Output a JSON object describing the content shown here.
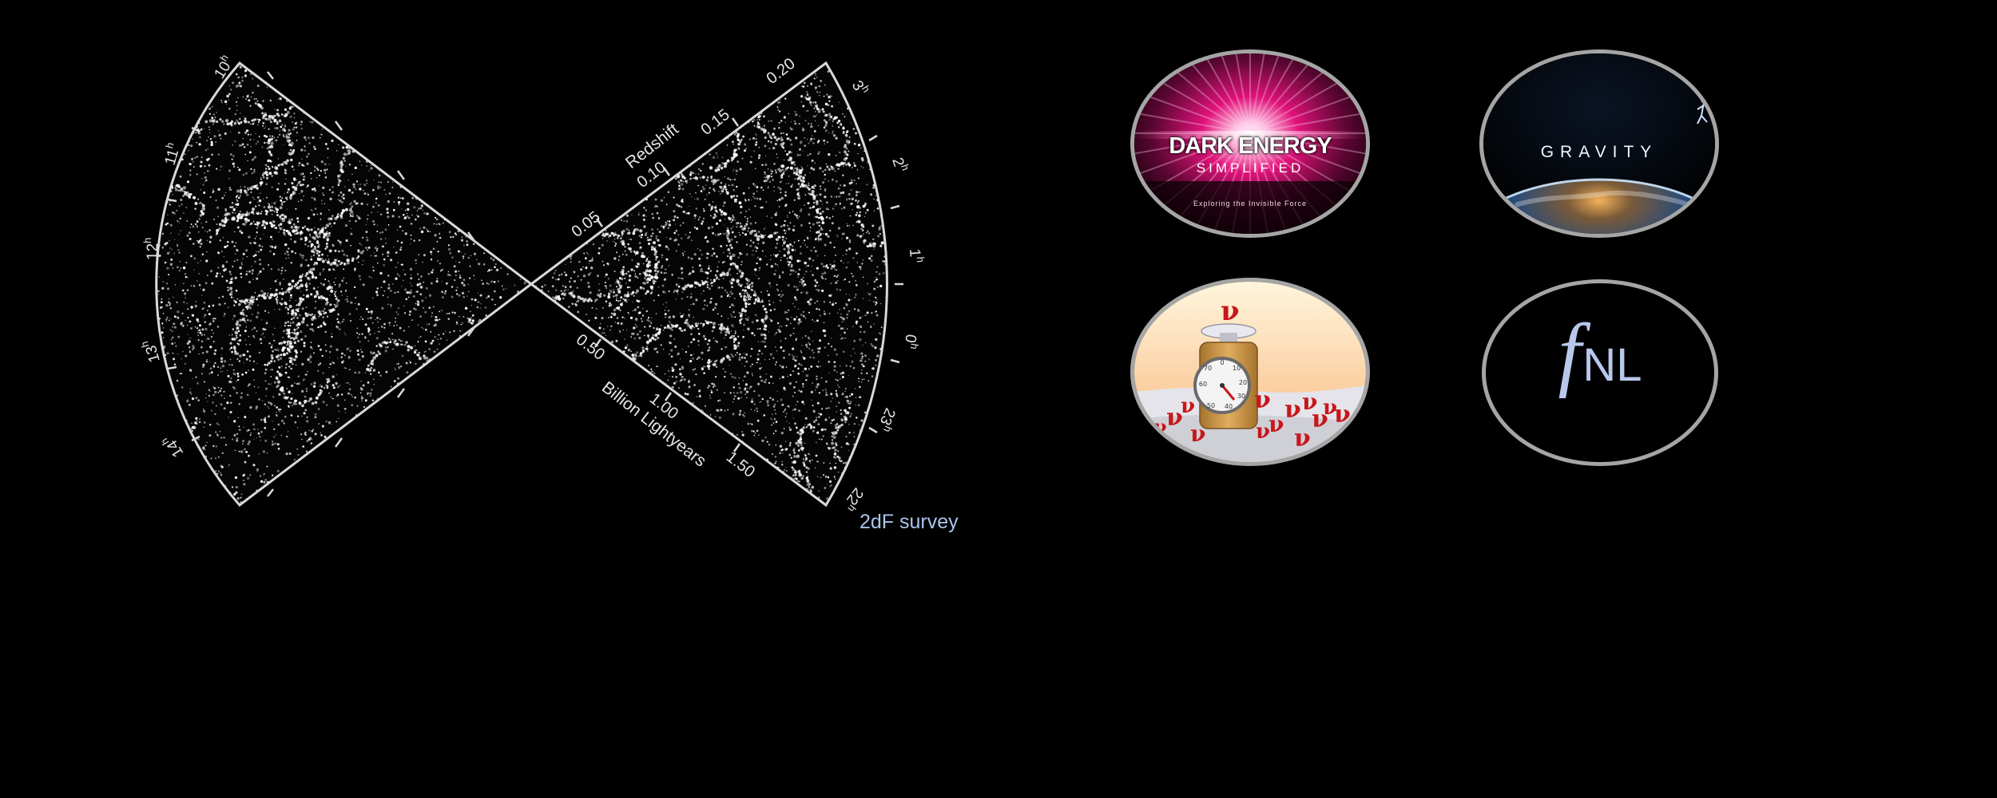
{
  "survey": {
    "caption": "2dF survey",
    "redshift_title": "Redshift",
    "distance_title": "Billion Lightyears",
    "redshift_ticks": [
      "0.05",
      "0.10",
      "0.15",
      "0.20"
    ],
    "distance_ticks": [
      "0.50",
      "1.00",
      "1.50"
    ],
    "left_ra_labels": [
      {
        "h": "10",
        "u": "h"
      },
      {
        "h": "11",
        "u": "h"
      },
      {
        "h": "12",
        "u": "h"
      },
      {
        "h": "13",
        "u": "h"
      },
      {
        "h": "14",
        "u": "h"
      }
    ],
    "right_ra_labels": [
      {
        "h": "3",
        "u": "h"
      },
      {
        "h": "2",
        "u": "h"
      },
      {
        "h": "1",
        "u": "h"
      },
      {
        "h": "0",
        "u": "h"
      },
      {
        "h": "23",
        "u": "h"
      },
      {
        "h": "22",
        "u": "h"
      }
    ]
  },
  "thumbnails": {
    "dark_energy": {
      "title": "DARK ENERGY",
      "subtitle": "SIMPLIFIED",
      "tagline": "Exploring the Invisible Force"
    },
    "gravity": {
      "title": "GRAVITY"
    },
    "neutrino": {
      "symbol": "ν",
      "dial_numbers": [
        "0",
        "10",
        "20",
        "30",
        "40",
        "50",
        "60",
        "70"
      ]
    },
    "fnl": {
      "f": "f",
      "sub": "NL"
    }
  },
  "colors": {
    "background": "#000000",
    "caption": "#a9c5ea",
    "oval_border": "#a5a5a5",
    "dark_energy_glow": "#e0127a",
    "neutrino_red": "#c8161b",
    "fnl_text": "#b8c8ec"
  }
}
